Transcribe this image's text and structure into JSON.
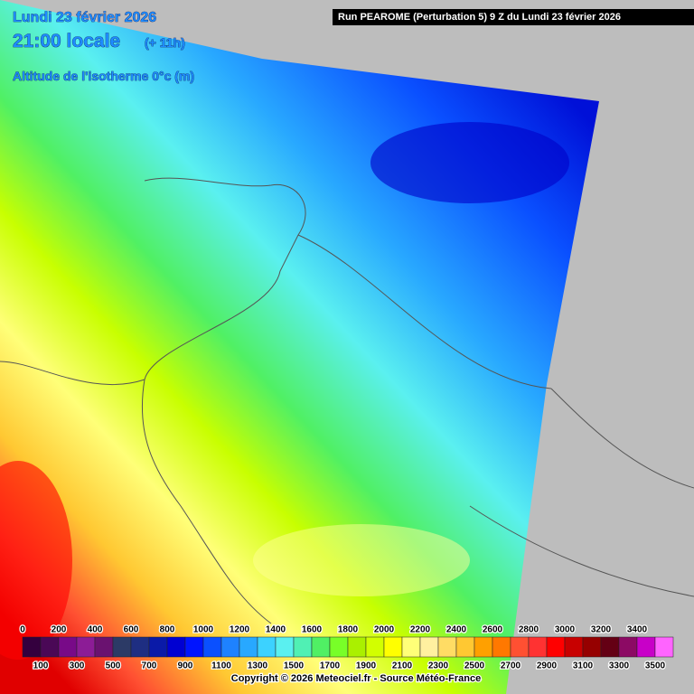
{
  "header": {
    "date": "Lundi 23 février 2026",
    "time": "21:00 locale",
    "lead": "(+ 11h)",
    "parameter": "Altitude de l'isotherme 0°c (m)",
    "run": "Run PEAROME (Perturbation 5) 9 Z du Lundi 23 février 2026"
  },
  "legend": {
    "top_labels": [
      0,
      200,
      400,
      600,
      800,
      1000,
      1200,
      1400,
      1600,
      1800,
      2000,
      2200,
      2400,
      2600,
      2800,
      3000,
      3200,
      3400
    ],
    "bottom_labels": [
      100,
      300,
      500,
      700,
      900,
      1100,
      1300,
      1500,
      1700,
      1900,
      2100,
      2300,
      2500,
      2700,
      2900,
      3100,
      3300,
      3500
    ],
    "colors": [
      "#34003e",
      "#4a0856",
      "#780a88",
      "#8c1c96",
      "#6a1270",
      "#2c3a66",
      "#1e2e82",
      "#0a1aa8",
      "#0000d2",
      "#0014ff",
      "#0a50ff",
      "#1e82ff",
      "#28a8ff",
      "#3cd2ff",
      "#5af0f0",
      "#50f0b4",
      "#50f064",
      "#78ff28",
      "#aaf000",
      "#d2ff00",
      "#ffff00",
      "#ffff78",
      "#fff0a0",
      "#ffdc64",
      "#ffc832",
      "#ffa000",
      "#ff7800",
      "#ff5032",
      "#ff3232",
      "#ff0000",
      "#c80000",
      "#960000",
      "#640014",
      "#8c0a64",
      "#c800c8",
      "#ff64ff"
    ]
  },
  "footer": {
    "copyright": "Copyright © 2026 Meteociel.fr - Source Météo-France"
  }
}
